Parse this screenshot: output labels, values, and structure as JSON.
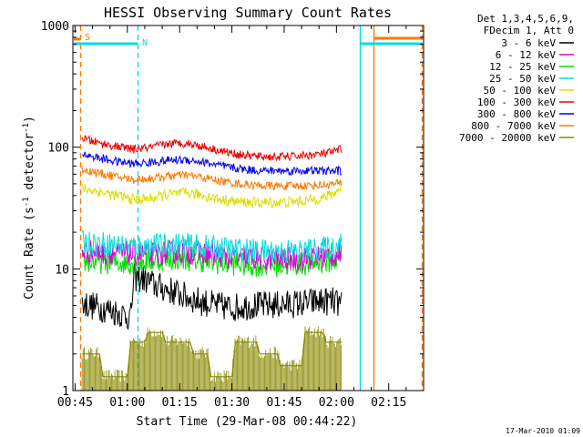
{
  "chart_data": {
    "type": "line",
    "title": "HESSI Observing Summary Count Rates",
    "xlabel": "Start Time (29-Mar-08 00:44:22)",
    "ylabel_prefix": "Count Rate (s",
    "ylabel_sup1": "-1",
    "ylabel_mid": " detector",
    "ylabel_sup2": "-1",
    "ylabel_suffix": ")",
    "y_scale": "log",
    "ylim": [
      1,
      1000
    ],
    "xlim_minutes": [
      44.37,
      145.0
    ],
    "x_ticks": [
      {
        "label": "00:45",
        "minutes": 45
      },
      {
        "label": "01:00",
        "minutes": 60
      },
      {
        "label": "01:15",
        "minutes": 75
      },
      {
        "label": "01:30",
        "minutes": 90
      },
      {
        "label": "01:45",
        "minutes": 105
      },
      {
        "label": "02:00",
        "minutes": 120
      },
      {
        "label": "02:15",
        "minutes": 135
      }
    ],
    "y_ticks": [
      {
        "label": "1",
        "value": 1
      },
      {
        "label": "10",
        "value": 10
      },
      {
        "label": "100",
        "value": 100
      },
      {
        "label": "1000",
        "value": 1000
      }
    ],
    "legend_header": [
      "Det 1,3,4,5,6,9,",
      "FDecim 1, Att 0"
    ],
    "legend_position": "top-right-outside",
    "series": [
      {
        "name": "3 - 6 keV",
        "color": "#000000",
        "x": [
          47,
          55,
          59,
          61,
          62,
          65,
          68,
          72,
          76,
          80,
          85,
          90,
          95,
          100,
          105,
          110,
          115,
          119,
          121.5
        ],
        "y": [
          5.2,
          4.6,
          4.2,
          4.0,
          8.5,
          8.2,
          7.3,
          6.7,
          6.0,
          5.5,
          5.0,
          4.8,
          5.0,
          5.0,
          5.1,
          5.2,
          5.4,
          5.4,
          5.0
        ]
      },
      {
        "name": "6 - 12 keV",
        "color": "#dd00dd",
        "x": [
          47,
          55,
          60,
          65,
          70,
          75,
          80,
          85,
          90,
          95,
          100,
          105,
          110,
          115,
          120,
          121.5
        ],
        "y": [
          14.0,
          13.5,
          13.2,
          13.0,
          13.5,
          13.8,
          13.5,
          13.0,
          12.5,
          12.3,
          12.0,
          12.0,
          12.0,
          12.5,
          13.0,
          13.5
        ]
      },
      {
        "name": "12 - 25 keV",
        "color": "#00dd00",
        "x": [
          47,
          55,
          60,
          65,
          70,
          75,
          80,
          85,
          90,
          95,
          100,
          105,
          110,
          115,
          120,
          121.5
        ],
        "y": [
          11.5,
          11.3,
          11.2,
          11.5,
          12.0,
          12.2,
          11.8,
          11.3,
          11.0,
          10.8,
          10.7,
          10.8,
          11.0,
          11.3,
          11.8,
          12.3
        ]
      },
      {
        "name": "25 - 50 keV",
        "color": "#00dddd",
        "x": [
          47,
          55,
          60,
          65,
          70,
          75,
          80,
          85,
          90,
          95,
          100,
          105,
          110,
          115,
          120,
          121.5
        ],
        "y": [
          16.5,
          16.0,
          15.5,
          15.3,
          15.7,
          16.0,
          15.5,
          15.0,
          14.5,
          14.2,
          14.0,
          14.0,
          14.0,
          14.5,
          15.5,
          17.0
        ]
      },
      {
        "name": "50 - 100 keV",
        "color": "#dddd00",
        "x": [
          47,
          52,
          57,
          62,
          67,
          72,
          77,
          82,
          87,
          92,
          97,
          102,
          107,
          112,
          117,
          120,
          121.5
        ],
        "y": [
          46,
          43,
          40,
          37,
          38,
          41,
          42,
          40,
          37,
          35.5,
          35,
          35,
          35.5,
          36.5,
          39,
          43,
          48
        ]
      },
      {
        "name": "100 - 300 keV",
        "color": "#ee0000",
        "x": [
          47,
          52,
          57,
          62,
          67,
          72,
          77,
          82,
          87,
          92,
          97,
          102,
          107,
          112,
          117,
          120,
          121.5
        ],
        "y": [
          118,
          108,
          101,
          96,
          100,
          107,
          108,
          101,
          93,
          87,
          84,
          83,
          84,
          86,
          89,
          93,
          97
        ]
      },
      {
        "name": "300 - 800 keV",
        "color": "#0000ee",
        "x": [
          47,
          52,
          57,
          62,
          67,
          72,
          77,
          82,
          87,
          92,
          97,
          102,
          107,
          112,
          117,
          120,
          121.5
        ],
        "y": [
          88,
          81,
          76,
          73,
          75,
          78,
          79,
          75,
          70,
          66.5,
          64.5,
          64,
          64,
          64,
          64,
          64,
          64
        ]
      },
      {
        "name": "800 - 7000 keV",
        "color": "#ff7700",
        "x": [
          47,
          52,
          57,
          62,
          67,
          72,
          77,
          82,
          87,
          92,
          97,
          102,
          107,
          112,
          117,
          120,
          121.5
        ],
        "y": [
          66,
          61,
          57,
          54,
          55.5,
          58,
          59,
          56,
          52.5,
          50,
          48.5,
          48,
          48,
          48.5,
          49,
          50,
          51
        ]
      },
      {
        "name": "7000 - 20000 keV",
        "color": "#888800",
        "x": [
          47,
          52,
          53,
          60,
          61,
          65,
          66,
          70,
          71,
          78,
          79,
          83,
          84,
          90,
          91,
          97,
          98,
          103,
          104,
          110,
          111,
          116,
          117,
          121.5
        ],
        "y": [
          2.0,
          2.0,
          1.3,
          1.3,
          2.5,
          2.5,
          3.0,
          3.0,
          2.5,
          2.5,
          2.0,
          2.0,
          1.3,
          1.3,
          2.5,
          2.5,
          2.0,
          2.0,
          1.6,
          1.6,
          3.0,
          3.0,
          2.5,
          2.5
        ]
      }
    ],
    "markers": [
      {
        "label": "S",
        "color": "#ff7700"
      },
      {
        "label": "N",
        "color": "#00dddd"
      }
    ],
    "timestamp": "17-Mar-2010 01:09"
  },
  "chart_colors": {
    "orange": "#ff7700",
    "cyan": "#00dddd"
  }
}
